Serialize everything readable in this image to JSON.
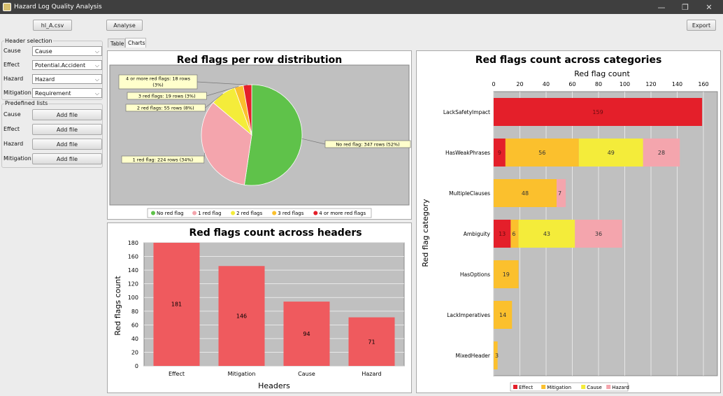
{
  "window": {
    "title": "Hazard Log Quality Analysis",
    "controls": [
      "—",
      "❐",
      "✕"
    ]
  },
  "toolbar": {
    "file_button": "hl_A.csv",
    "analyse_button": "Analyse",
    "export_button": "Export"
  },
  "header_selection": {
    "title": "Header selection",
    "rows": [
      {
        "label": "Cause",
        "value": "Cause"
      },
      {
        "label": "Effect",
        "value": "Potential.Accident"
      },
      {
        "label": "Hazard",
        "value": "Hazard"
      },
      {
        "label": "Mitigation",
        "value": "Requirement"
      }
    ]
  },
  "predefined_lists": {
    "title": "Predefined lists",
    "rows": [
      {
        "label": "Cause",
        "button": "Add file"
      },
      {
        "label": "Effect",
        "button": "Add file"
      },
      {
        "label": "Hazard",
        "button": "Add file"
      },
      {
        "label": "Mitigation",
        "button": "Add file"
      }
    ]
  },
  "tabs": [
    {
      "label": "Table",
      "active": false
    },
    {
      "label": "Charts",
      "active": true
    }
  ],
  "colors": {
    "effect": "#e41f2a",
    "mitigation": "#fbc02d",
    "cause": "#f4ec3a",
    "hazard": "#f4a5ad",
    "none": "#5fc24a",
    "bar": "#ef5a5e",
    "plot_bg": "#c0c0c0"
  },
  "chart_data": [
    {
      "type": "pie",
      "title": "Red flags per row distribution",
      "slices": [
        {
          "name": "No red flag",
          "value": 347,
          "label": "No red flag: 347 rows (52%)",
          "color": "#5fc24a"
        },
        {
          "name": "1 red flag",
          "value": 224,
          "label": "1 red flag: 224 rows (34%)",
          "color": "#f4a5ad"
        },
        {
          "name": "2 red flags",
          "value": 55,
          "label": "2 red flags: 55 rows (8%)",
          "color": "#f4ec3a"
        },
        {
          "name": "3 red flags",
          "value": 19,
          "label": "3 red flags: 19 rows (3%)",
          "color": "#fbc02d"
        },
        {
          "name": "4 or more red flags",
          "value": 18,
          "label": "4 or more red flags: 18 rows (3%)",
          "color": "#e41f2a"
        }
      ],
      "legend": [
        "No red flag",
        "1 red flag",
        "2 red flags",
        "3 red flags",
        "4 or more red flags"
      ],
      "legend_position": "bottom"
    },
    {
      "type": "bar",
      "title": "Red flags count across headers",
      "xlabel": "Headers",
      "ylabel": "Red flags count",
      "categories": [
        "Effect",
        "Mitigation",
        "Cause",
        "Hazard"
      ],
      "values": [
        181,
        146,
        94,
        71
      ],
      "ylim": [
        0,
        180
      ],
      "yticks": [
        0,
        20,
        40,
        60,
        80,
        100,
        120,
        140,
        160,
        180
      ],
      "grid": true
    },
    {
      "type": "bar",
      "orientation": "horizontal",
      "stacked": true,
      "title": "Red flags count across categories",
      "xlabel": "Red flag count",
      "ylabel": "Red flag category",
      "categories": [
        "LackSafetyImpact",
        "HasWeakPhrases",
        "MultipleClauses",
        "Ambiguity",
        "HasOptions",
        "LackImperatives",
        "MixedHeader"
      ],
      "xlim": [
        0,
        160
      ],
      "xticks": [
        0,
        20,
        40,
        60,
        80,
        100,
        120,
        140,
        160
      ],
      "series": [
        {
          "name": "Effect",
          "color": "#e41f2a",
          "values": [
            159,
            9,
            0,
            13,
            0,
            0,
            0
          ]
        },
        {
          "name": "Mitigation",
          "color": "#fbc02d",
          "values": [
            0,
            56,
            48,
            6,
            19,
            14,
            3
          ]
        },
        {
          "name": "Cause",
          "color": "#f4ec3a",
          "values": [
            0,
            49,
            0,
            43,
            0,
            0,
            0
          ]
        },
        {
          "name": "Hazard",
          "color": "#f4a5ad",
          "values": [
            0,
            28,
            7,
            36,
            0,
            0,
            0
          ]
        }
      ],
      "legend_position": "bottom"
    }
  ]
}
